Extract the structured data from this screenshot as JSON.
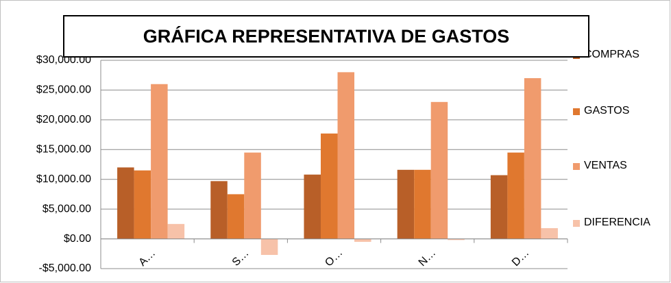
{
  "chart_data": {
    "type": "bar",
    "title": "GRÁFICA REPRESENTATIVA DE GASTOS",
    "categories": [
      "A…",
      "S…",
      "O…",
      "N…",
      "D…"
    ],
    "series": [
      {
        "name": "COMPRAS",
        "color": "#b85f28",
        "values": [
          12000,
          9700,
          10800,
          11600,
          10700
        ]
      },
      {
        "name": "GASTOS",
        "color": "#e0782f",
        "values": [
          11500,
          7500,
          17700,
          11600,
          14500
        ]
      },
      {
        "name": "VENTAS",
        "color": "#f09b6d",
        "values": [
          26000,
          14500,
          28000,
          23000,
          27000
        ]
      },
      {
        "name": "DIFERENCIA",
        "color": "#f7c2a9",
        "values": [
          2500,
          -2700,
          -500,
          -200,
          1800
        ]
      }
    ],
    "ylim": [
      -5000,
      30000
    ],
    "yticks": [
      {
        "value": -5000,
        "label": "-$5,000.00"
      },
      {
        "value": 0,
        "label": "$0.00"
      },
      {
        "value": 5000,
        "label": "$5,000.00"
      },
      {
        "value": 10000,
        "label": "$10,000.00"
      },
      {
        "value": 15000,
        "label": "$15,000.00"
      },
      {
        "value": 20000,
        "label": "$20,000.00"
      },
      {
        "value": 25000,
        "label": "$25,000.00"
      },
      {
        "value": 30000,
        "label": "$30,000.00"
      }
    ],
    "grid": true,
    "legend": "right"
  }
}
